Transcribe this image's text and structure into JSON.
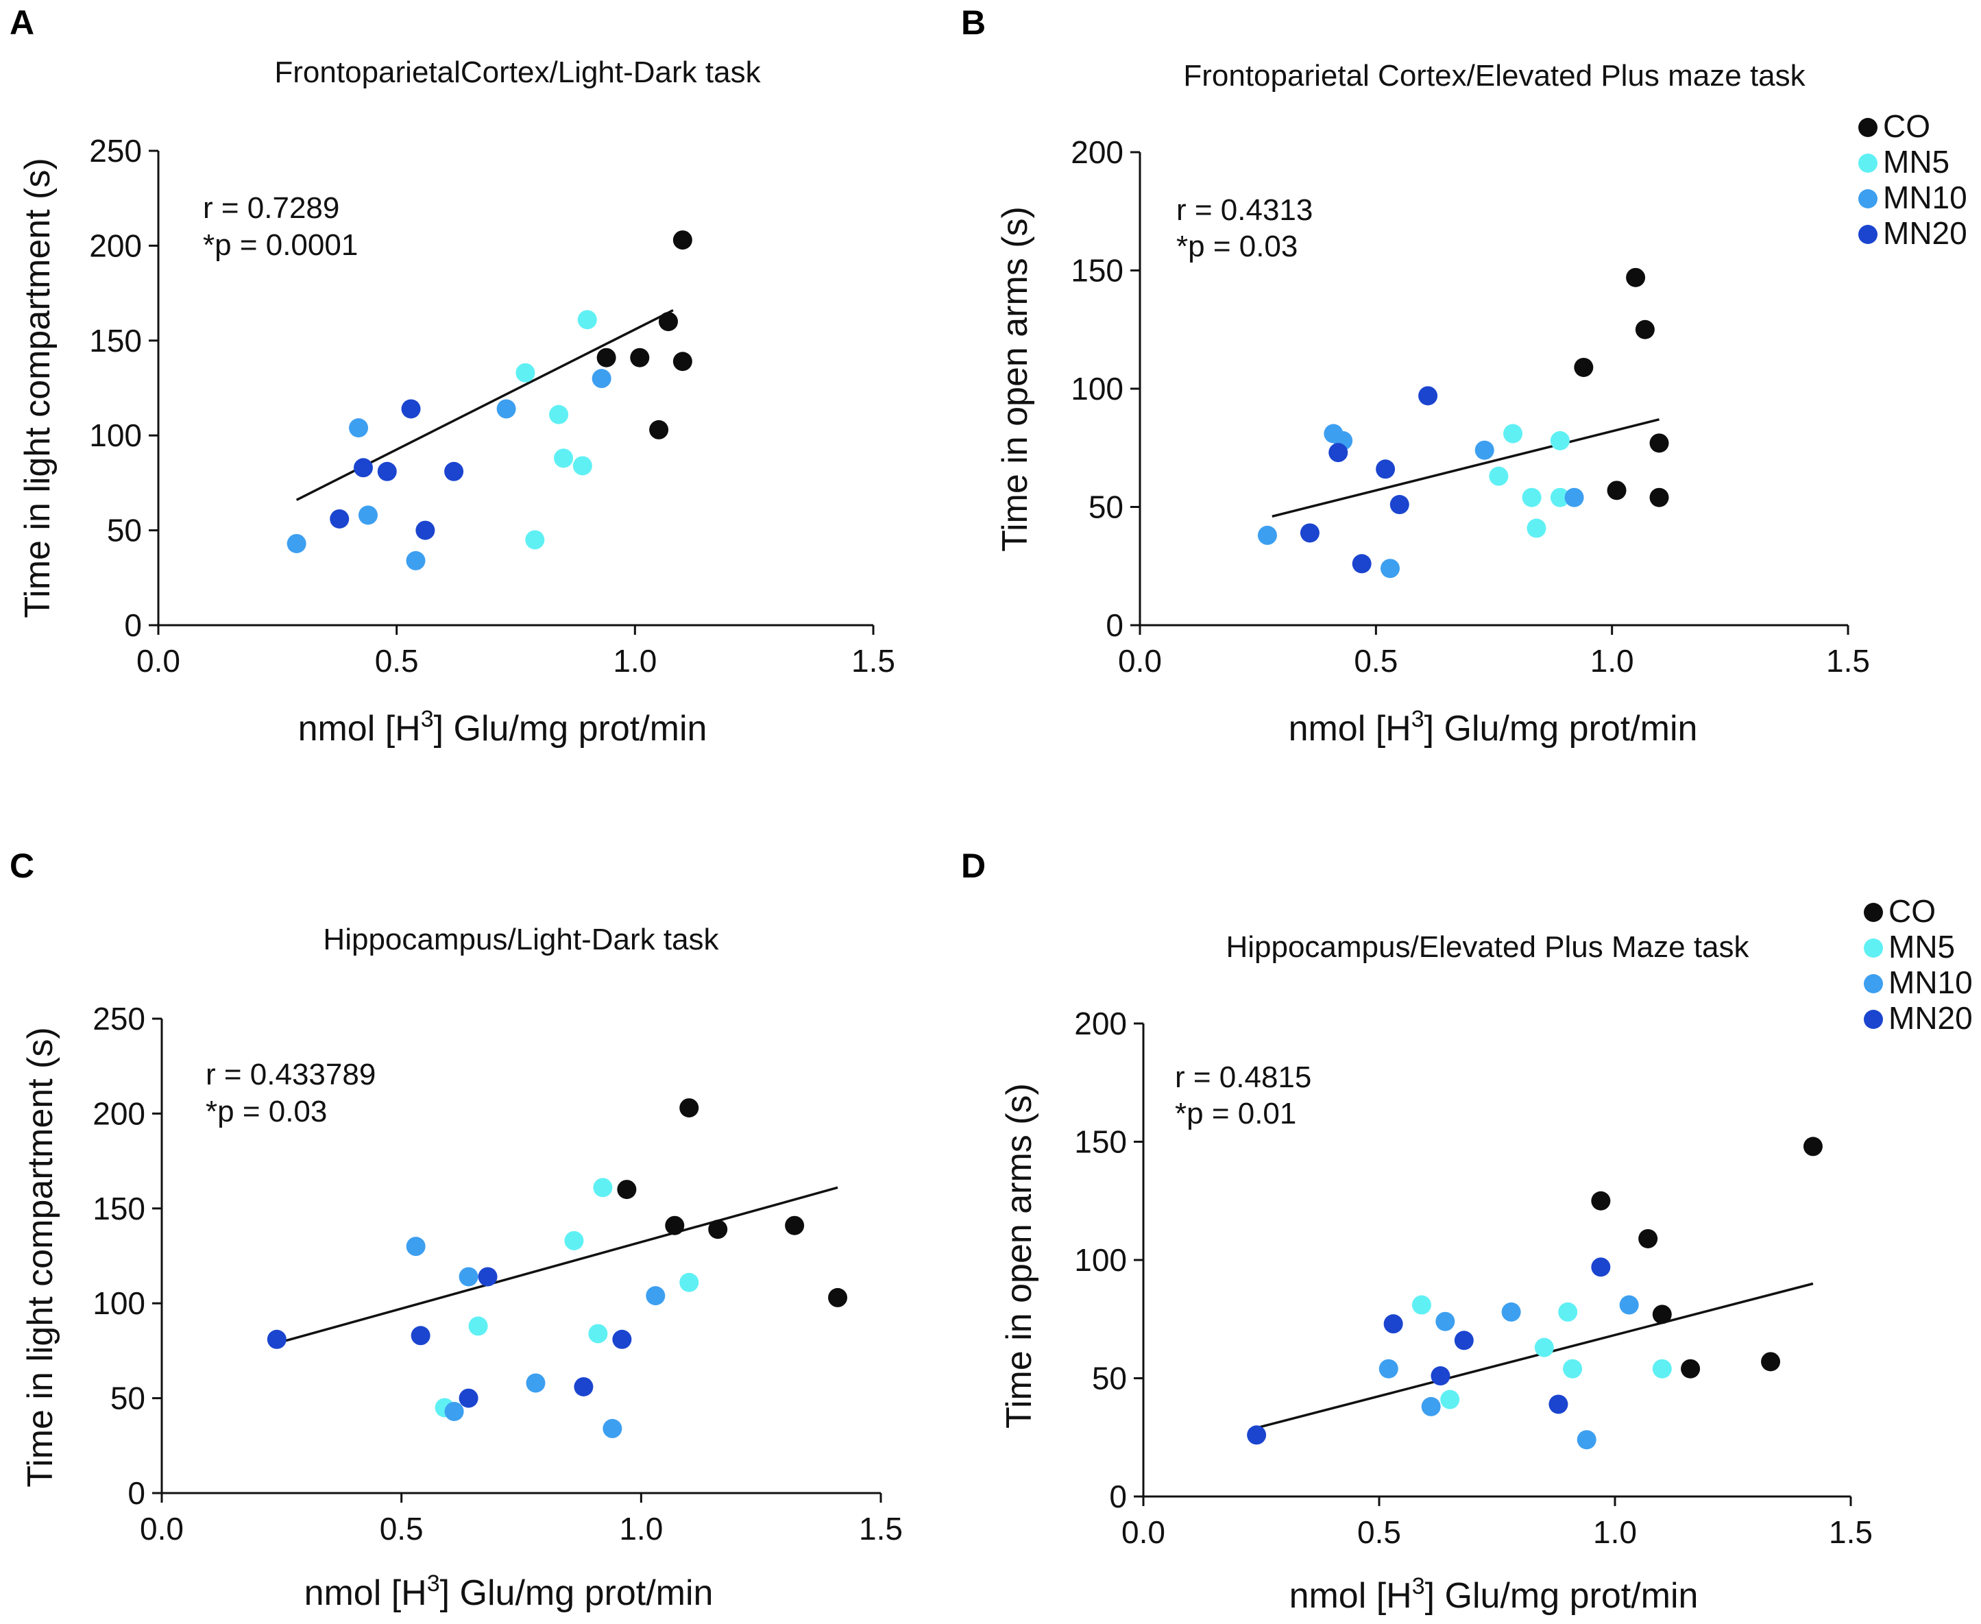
{
  "colors": {
    "CO": "#0d0d0d",
    "MN5": "#5ff0f4",
    "MN10": "#3d9ff0",
    "MN20": "#1b45cf"
  },
  "legend": [
    {
      "group": "CO",
      "label": "CO"
    },
    {
      "group": "MN5",
      "label": "MN5"
    },
    {
      "group": "MN10",
      "label": "MN10"
    },
    {
      "group": "MN20",
      "label": "MN20"
    }
  ],
  "chart_data": [
    {
      "type": "scatter",
      "panel": "A",
      "title": "FrontoparietalCortex/Light-Dark task",
      "xlabel": "nmol [H3] Glu/mg prot/min",
      "xlabel_main": "nmol [H",
      "xlabel_sup": "3",
      "xlabel_rest": "] Glu/mg prot/min",
      "ylabel": "Time in light compartment (s)",
      "xlim": [
        0,
        1.5
      ],
      "ylim": [
        0,
        250
      ],
      "xticks": [
        "0.0",
        "0.5",
        "1.0",
        "1.5"
      ],
      "yticks": [
        "0",
        "50",
        "100",
        "150",
        "200",
        "250"
      ],
      "stat_r": "r = 0.7289",
      "stat_p": "*p = 0.0001",
      "regression": {
        "x1": 0.29,
        "y1": 66,
        "x2": 1.08,
        "y2": 166
      },
      "show_legend": false,
      "points": [
        {
          "g": "CO",
          "x": 1.1,
          "y": 203
        },
        {
          "g": "CO",
          "x": 1.07,
          "y": 160
        },
        {
          "g": "CO",
          "x": 0.94,
          "y": 141
        },
        {
          "g": "CO",
          "x": 1.01,
          "y": 141
        },
        {
          "g": "CO",
          "x": 1.1,
          "y": 139
        },
        {
          "g": "CO",
          "x": 1.05,
          "y": 103
        },
        {
          "g": "MN5",
          "x": 0.9,
          "y": 161
        },
        {
          "g": "MN5",
          "x": 0.77,
          "y": 133
        },
        {
          "g": "MN5",
          "x": 0.84,
          "y": 111
        },
        {
          "g": "MN5",
          "x": 0.85,
          "y": 88
        },
        {
          "g": "MN5",
          "x": 0.89,
          "y": 84
        },
        {
          "g": "MN5",
          "x": 0.79,
          "y": 45
        },
        {
          "g": "MN10",
          "x": 0.93,
          "y": 130
        },
        {
          "g": "MN10",
          "x": 0.73,
          "y": 114
        },
        {
          "g": "MN10",
          "x": 0.42,
          "y": 104
        },
        {
          "g": "MN10",
          "x": 0.44,
          "y": 58
        },
        {
          "g": "MN10",
          "x": 0.29,
          "y": 43
        },
        {
          "g": "MN10",
          "x": 0.54,
          "y": 34
        },
        {
          "g": "MN20",
          "x": 0.53,
          "y": 114
        },
        {
          "g": "MN20",
          "x": 0.43,
          "y": 83
        },
        {
          "g": "MN20",
          "x": 0.48,
          "y": 81
        },
        {
          "g": "MN20",
          "x": 0.62,
          "y": 81
        },
        {
          "g": "MN20",
          "x": 0.38,
          "y": 56
        },
        {
          "g": "MN20",
          "x": 0.56,
          "y": 50
        }
      ]
    },
    {
      "type": "scatter",
      "panel": "B",
      "title": "Frontoparietal Cortex/Elevated Plus maze task",
      "xlabel": "nmol [H3] Glu/mg prot/min",
      "xlabel_main": "nmol [H",
      "xlabel_sup": "3",
      "xlabel_rest": "] Glu/mg prot/min",
      "ylabel": "Time in open arms (s)",
      "xlim": [
        0,
        1.5
      ],
      "ylim": [
        0,
        200
      ],
      "xticks": [
        "0.0",
        "0.5",
        "1.0",
        "1.5"
      ],
      "yticks": [
        "0",
        "50",
        "100",
        "150",
        "200"
      ],
      "stat_r": "r = 0.4313",
      "stat_p": "*p = 0.03",
      "regression": {
        "x1": 0.28,
        "y1": 46,
        "x2": 1.1,
        "y2": 87
      },
      "show_legend": true,
      "points": [
        {
          "g": "CO",
          "x": 1.05,
          "y": 147
        },
        {
          "g": "CO",
          "x": 1.07,
          "y": 125
        },
        {
          "g": "CO",
          "x": 0.94,
          "y": 109
        },
        {
          "g": "CO",
          "x": 1.1,
          "y": 77
        },
        {
          "g": "CO",
          "x": 1.01,
          "y": 57
        },
        {
          "g": "CO",
          "x": 1.1,
          "y": 54
        },
        {
          "g": "MN5",
          "x": 0.79,
          "y": 81
        },
        {
          "g": "MN5",
          "x": 0.89,
          "y": 78
        },
        {
          "g": "MN5",
          "x": 0.76,
          "y": 63
        },
        {
          "g": "MN5",
          "x": 0.83,
          "y": 54
        },
        {
          "g": "MN5",
          "x": 0.89,
          "y": 54
        },
        {
          "g": "MN5",
          "x": 0.84,
          "y": 41
        },
        {
          "g": "MN10",
          "x": 0.41,
          "y": 81
        },
        {
          "g": "MN10",
          "x": 0.43,
          "y": 78
        },
        {
          "g": "MN10",
          "x": 0.73,
          "y": 74
        },
        {
          "g": "MN10",
          "x": 0.92,
          "y": 54
        },
        {
          "g": "MN10",
          "x": 0.27,
          "y": 38
        },
        {
          "g": "MN10",
          "x": 0.53,
          "y": 24
        },
        {
          "g": "MN20",
          "x": 0.61,
          "y": 97
        },
        {
          "g": "MN20",
          "x": 0.42,
          "y": 73
        },
        {
          "g": "MN20",
          "x": 0.52,
          "y": 66
        },
        {
          "g": "MN20",
          "x": 0.55,
          "y": 51
        },
        {
          "g": "MN20",
          "x": 0.36,
          "y": 39
        },
        {
          "g": "MN20",
          "x": 0.47,
          "y": 26
        }
      ]
    },
    {
      "type": "scatter",
      "panel": "C",
      "title": "Hippocampus/Light-Dark task",
      "xlabel": "nmol [H3] Glu/mg prot/min",
      "xlabel_main": "nmol [H",
      "xlabel_sup": "3",
      "xlabel_rest": "] Glu/mg prot/min",
      "ylabel": "Time in light compartment (s)",
      "xlim": [
        0,
        1.5
      ],
      "ylim": [
        0,
        250
      ],
      "xticks": [
        "0.0",
        "0.5",
        "1.0",
        "1.5"
      ],
      "yticks": [
        "0",
        "50",
        "100",
        "150",
        "200",
        "250"
      ],
      "stat_r": "r = 0.433789",
      "stat_p": "*p = 0.03",
      "regression": {
        "x1": 0.24,
        "y1": 79,
        "x2": 1.41,
        "y2": 161
      },
      "show_legend": false,
      "points": [
        {
          "g": "CO",
          "x": 1.1,
          "y": 203
        },
        {
          "g": "CO",
          "x": 0.97,
          "y": 160
        },
        {
          "g": "CO",
          "x": 1.07,
          "y": 141
        },
        {
          "g": "CO",
          "x": 1.16,
          "y": 139
        },
        {
          "g": "CO",
          "x": 1.32,
          "y": 141
        },
        {
          "g": "CO",
          "x": 1.41,
          "y": 103
        },
        {
          "g": "MN5",
          "x": 0.92,
          "y": 161
        },
        {
          "g": "MN5",
          "x": 0.86,
          "y": 133
        },
        {
          "g": "MN5",
          "x": 1.1,
          "y": 111
        },
        {
          "g": "MN5",
          "x": 0.66,
          "y": 88
        },
        {
          "g": "MN5",
          "x": 0.91,
          "y": 84
        },
        {
          "g": "MN5",
          "x": 0.59,
          "y": 45
        },
        {
          "g": "MN10",
          "x": 0.53,
          "y": 130
        },
        {
          "g": "MN10",
          "x": 0.64,
          "y": 114
        },
        {
          "g": "MN10",
          "x": 1.03,
          "y": 104
        },
        {
          "g": "MN10",
          "x": 0.78,
          "y": 58
        },
        {
          "g": "MN10",
          "x": 0.61,
          "y": 43
        },
        {
          "g": "MN10",
          "x": 0.94,
          "y": 34
        },
        {
          "g": "MN20",
          "x": 0.68,
          "y": 114
        },
        {
          "g": "MN20",
          "x": 0.54,
          "y": 83
        },
        {
          "g": "MN20",
          "x": 0.96,
          "y": 81
        },
        {
          "g": "MN20",
          "x": 0.24,
          "y": 81
        },
        {
          "g": "MN20",
          "x": 0.88,
          "y": 56
        },
        {
          "g": "MN20",
          "x": 0.64,
          "y": 50
        }
      ]
    },
    {
      "type": "scatter",
      "panel": "D",
      "title": "Hippocampus/Elevated Plus Maze task",
      "xlabel": "nmol [H3] Glu/mg prot/min",
      "xlabel_main": "nmol [H",
      "xlabel_sup": "3",
      "xlabel_rest": "] Glu/mg prot/min",
      "ylabel": "Time in open arms (s)",
      "xlim": [
        0,
        1.5
      ],
      "ylim": [
        0,
        200
      ],
      "xticks": [
        "0.0",
        "0.5",
        "1.0",
        "1.5"
      ],
      "yticks": [
        "0",
        "50",
        "100",
        "150",
        "200"
      ],
      "stat_r": "r = 0.4815",
      "stat_p": "*p = 0.01",
      "regression": {
        "x1": 0.24,
        "y1": 29,
        "x2": 1.42,
        "y2": 90
      },
      "show_legend": true,
      "points": [
        {
          "g": "CO",
          "x": 1.42,
          "y": 148
        },
        {
          "g": "CO",
          "x": 0.97,
          "y": 125
        },
        {
          "g": "CO",
          "x": 1.07,
          "y": 109
        },
        {
          "g": "CO",
          "x": 1.1,
          "y": 77
        },
        {
          "g": "CO",
          "x": 1.33,
          "y": 57
        },
        {
          "g": "CO",
          "x": 1.16,
          "y": 54
        },
        {
          "g": "MN5",
          "x": 0.59,
          "y": 81
        },
        {
          "g": "MN5",
          "x": 0.9,
          "y": 78
        },
        {
          "g": "MN5",
          "x": 0.85,
          "y": 63
        },
        {
          "g": "MN5",
          "x": 0.91,
          "y": 54
        },
        {
          "g": "MN5",
          "x": 1.1,
          "y": 54
        },
        {
          "g": "MN5",
          "x": 0.65,
          "y": 41
        },
        {
          "g": "MN10",
          "x": 1.03,
          "y": 81
        },
        {
          "g": "MN10",
          "x": 0.78,
          "y": 78
        },
        {
          "g": "MN10",
          "x": 0.64,
          "y": 74
        },
        {
          "g": "MN10",
          "x": 0.52,
          "y": 54
        },
        {
          "g": "MN10",
          "x": 0.61,
          "y": 38
        },
        {
          "g": "MN10",
          "x": 0.94,
          "y": 24
        },
        {
          "g": "MN20",
          "x": 0.97,
          "y": 97
        },
        {
          "g": "MN20",
          "x": 0.53,
          "y": 73
        },
        {
          "g": "MN20",
          "x": 0.68,
          "y": 66
        },
        {
          "g": "MN20",
          "x": 0.63,
          "y": 51
        },
        {
          "g": "MN20",
          "x": 0.88,
          "y": 39
        },
        {
          "g": "MN20",
          "x": 0.24,
          "y": 26
        }
      ]
    }
  ]
}
